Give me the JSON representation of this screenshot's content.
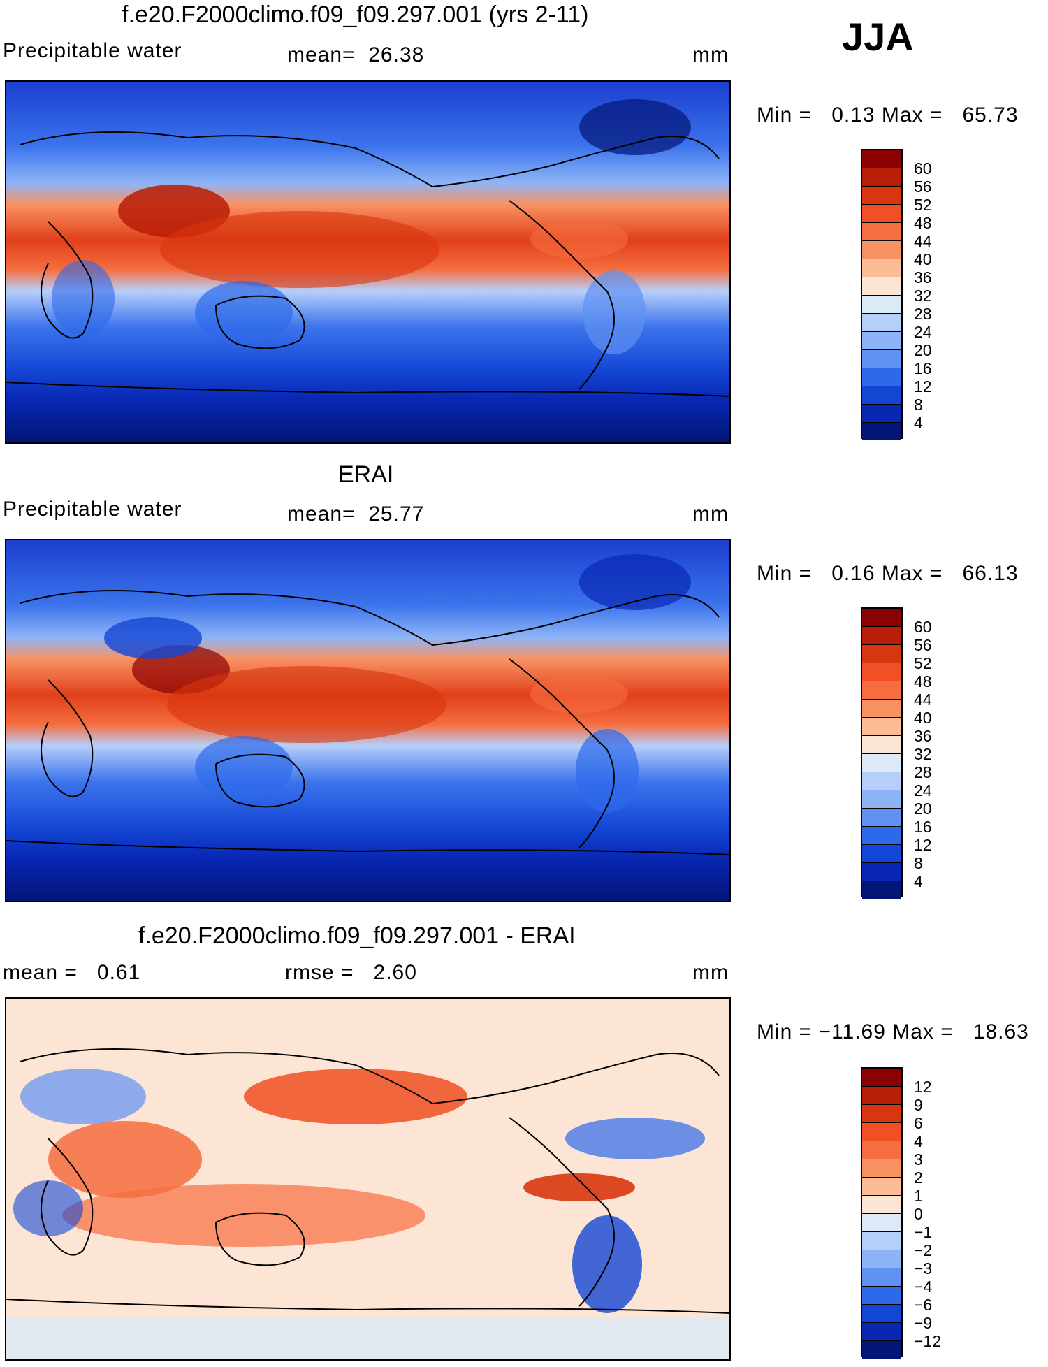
{
  "season": "JJA",
  "panels": [
    {
      "title": "f.e20.F2000climo.f09_f09.297.001 (yrs 2-11)",
      "left_label": "Precipitable water",
      "center_label": "mean=  26.38",
      "units": "mm",
      "minmax": "Min =   0.13 Max =   65.73",
      "colorbar_ticks": [
        "60",
        "56",
        "52",
        "48",
        "44",
        "40",
        "36",
        "32",
        "28",
        "24",
        "20",
        "16",
        "12",
        "8",
        "4"
      ],
      "colorbar_colors": [
        "#8b0000",
        "#b81d06",
        "#d8360e",
        "#f05023",
        "#f66d3f",
        "#f99263",
        "#fcbc96",
        "#fde5d5",
        "#dceaf8",
        "#b6cffa",
        "#8eb4f8",
        "#5f92f2",
        "#2e69ea",
        "#1446d5",
        "#0828b4",
        "#031577"
      ]
    },
    {
      "title": "ERAI",
      "left_label": "Precipitable water",
      "center_label": "mean=  25.77",
      "units": "mm",
      "minmax": "Min =   0.16 Max =   66.13",
      "colorbar_ticks": [
        "60",
        "56",
        "52",
        "48",
        "44",
        "40",
        "36",
        "32",
        "28",
        "24",
        "20",
        "16",
        "12",
        "8",
        "4"
      ],
      "colorbar_colors": [
        "#8b0000",
        "#b81d06",
        "#d8360e",
        "#f05023",
        "#f66d3f",
        "#f99263",
        "#fcbc96",
        "#fde5d5",
        "#dceaf8",
        "#b6cffa",
        "#8eb4f8",
        "#5f92f2",
        "#2e69ea",
        "#1446d5",
        "#0828b4",
        "#031577"
      ]
    },
    {
      "title": "f.e20.F2000climo.f09_f09.297.001 - ERAI",
      "left_label": "mean =   0.61",
      "center_label": "rmse =   2.60",
      "units": "mm",
      "minmax": "Min = −11.69 Max =   18.63",
      "colorbar_ticks": [
        "12",
        "9",
        "6",
        "4",
        "3",
        "2",
        "1",
        "0",
        "−1",
        "−2",
        "−3",
        "−4",
        "−6",
        "−9",
        "−12"
      ],
      "colorbar_colors": [
        "#8b0000",
        "#b81d06",
        "#d8360e",
        "#f05023",
        "#f66d3f",
        "#f99263",
        "#fcbc96",
        "#fde5d5",
        "#dceaf8",
        "#b6cffa",
        "#8eb4f8",
        "#5f92f2",
        "#2e69ea",
        "#1446d5",
        "#0828b4",
        "#031577"
      ]
    }
  ]
}
